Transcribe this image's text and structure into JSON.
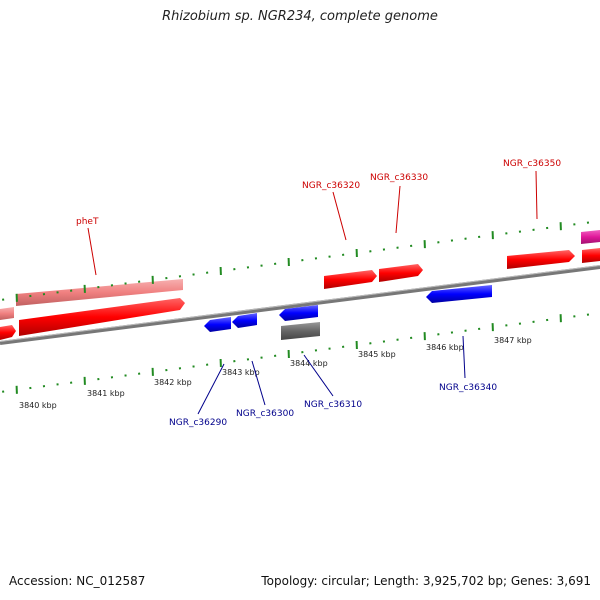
{
  "title": "Rhizobium sp. NGR234, complete genome",
  "footer": {
    "accession": "Accession: NC_012587",
    "topology": "Topology: circular; Length: 3,925,702 bp; Genes: 3,691"
  },
  "colors": {
    "forward_gene": "#ff0000",
    "forward_gene_light": "#f08080",
    "reverse_gene": "#0000ff",
    "magenta_gene": "#e0189a",
    "other_feature": "#666666",
    "tick": "#228b22",
    "forward_label": "#cc0000",
    "reverse_label": "#00008b"
  },
  "kbp_labels": [
    "3840 kbp",
    "3841 kbp",
    "3842 kbp",
    "3843 kbp",
    "3844 kbp",
    "3845 kbp",
    "3846 kbp",
    "3847 kbp"
  ],
  "gene_labels": {
    "forward": [
      "pheT",
      "NGR_c36320",
      "NGR_c36330",
      "NGR_c36350"
    ],
    "reverse": [
      "NGR_c36290",
      "NGR_c36300",
      "NGR_c36310",
      "NGR_c36340"
    ]
  }
}
